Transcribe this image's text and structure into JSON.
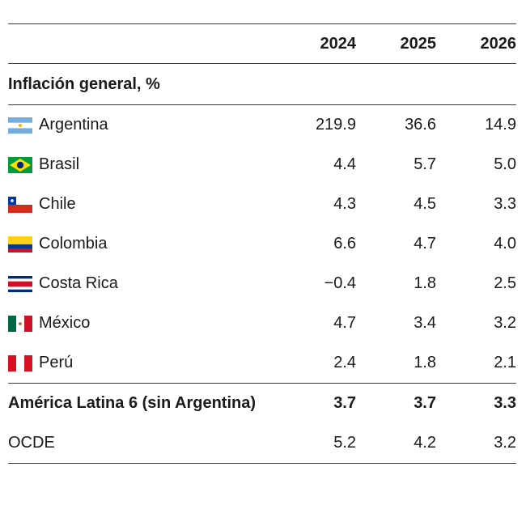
{
  "header": {
    "years": [
      "2024",
      "2025",
      "2026"
    ]
  },
  "section_title": "Inflación general, %",
  "rows": [
    {
      "country": "Argentina",
      "flag": "argentina-flag-icon",
      "values": [
        "219.9",
        "36.6",
        "14.9"
      ]
    },
    {
      "country": "Brasil",
      "flag": "brazil-flag-icon",
      "values": [
        "4.4",
        "5.7",
        "5.0"
      ]
    },
    {
      "country": "Chile",
      "flag": "chile-flag-icon",
      "values": [
        "4.3",
        "4.5",
        "3.3"
      ]
    },
    {
      "country": "Colombia",
      "flag": "colombia-flag-icon",
      "values": [
        "6.6",
        "4.7",
        "4.0"
      ]
    },
    {
      "country": "Costa Rica",
      "flag": "costa-rica-flag-icon",
      "values": [
        "−0.4",
        "1.8",
        "2.5"
      ]
    },
    {
      "country": "México",
      "flag": "mexico-flag-icon",
      "values": [
        "4.7",
        "3.4",
        "3.2"
      ]
    },
    {
      "country": "Perú",
      "flag": "peru-flag-icon",
      "values": [
        "2.4",
        "1.8",
        "2.1"
      ]
    }
  ],
  "aggregate": {
    "label": "América Latina 6 (sin Argentina)",
    "values": [
      "3.7",
      "3.7",
      "3.3"
    ]
  },
  "oecd": {
    "label": "OCDE",
    "values": [
      "5.2",
      "4.2",
      "3.2"
    ]
  }
}
